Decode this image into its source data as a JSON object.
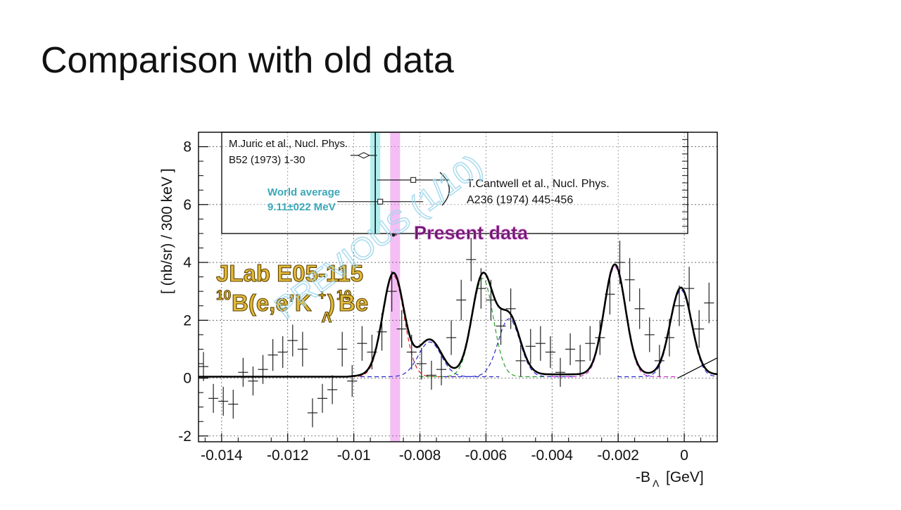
{
  "slide": {
    "title": "Comparison with old data"
  },
  "chart_data": {
    "type": "scatter",
    "title": "",
    "xlabel": "-B",
    "xlabel_sub": "Λ",
    "xlabel_unit": "[GeV]",
    "ylabel": "[ (nb/sr) / 300 keV ]",
    "xlim": [
      -0.0147,
      0.001
    ],
    "ylim": [
      -2.2,
      8.5
    ],
    "grid": true,
    "x_ticks": [
      -0.014,
      -0.012,
      -0.01,
      -0.008,
      -0.006,
      -0.004,
      -0.002,
      0
    ],
    "x_tick_labels": [
      "-0.014",
      "-0.012",
      "-0.01",
      "-0.008",
      "-0.006",
      "-0.004",
      "-0.002",
      "0"
    ],
    "y_ticks": [
      -2,
      0,
      2,
      4,
      6,
      8
    ],
    "y_tick_labels": [
      "-2",
      "0",
      "2",
      "4",
      "6",
      "8"
    ],
    "experiment_label": "JLab E05-115",
    "reaction_label": {
      "mass_a": "10",
      "target_text": "B(e,e’K",
      "charge": "+",
      "close": ")",
      "mass_b": "10",
      "hyper_sub": "Λ",
      "product": "Be"
    },
    "watermark": "PREVIOUS (1/10)",
    "inset": {
      "label_juric": [
        "M.Juric et al., Nucl. Phys.",
        "B52 (1973) 1-30"
      ],
      "label_cantwell": [
        "T.Cantwell et al., Nucl. Phys.",
        "A236 (1974) 445-456"
      ],
      "label_world": [
        "World average",
        "9.11±022 MeV"
      ],
      "label_present": "Present data",
      "points": [
        {
          "x": -0.0097,
          "y": 7.7,
          "xerr": 0.0004,
          "marker": "diamond"
        },
        {
          "x": -0.0082,
          "y": 6.85,
          "xerr": 0.0011,
          "marker": "square"
        },
        {
          "x": -0.0092,
          "y": 6.1,
          "xerr": 0.0013,
          "marker": "square"
        },
        {
          "x": -0.0088,
          "y": 4.95,
          "xerr": 0.0001,
          "marker": "dot"
        }
      ],
      "world_band": [
        -0.0095,
        -0.0092
      ],
      "present_band": [
        -0.0089,
        -0.0086
      ]
    },
    "series": [
      {
        "name": "",
        "style": "points",
        "x": [
          -0.01455,
          -0.01425,
          -0.01395,
          -0.01365,
          -0.01335,
          -0.01305,
          -0.01275,
          -0.01245,
          -0.01215,
          -0.01185,
          -0.01155,
          -0.01125,
          -0.01095,
          -0.01065,
          -0.01035,
          -0.01005,
          -0.00975,
          -0.00945,
          -0.00915,
          -0.00885,
          -0.00855,
          -0.00825,
          -0.00795,
          -0.00765,
          -0.00735,
          -0.00705,
          -0.00675,
          -0.00645,
          -0.00615,
          -0.00585,
          -0.00555,
          -0.00525,
          -0.00495,
          -0.00465,
          -0.00435,
          -0.00405,
          -0.00375,
          -0.00345,
          -0.00315,
          -0.00285,
          -0.00255,
          -0.00225,
          -0.00195,
          -0.00165,
          -0.00135,
          -0.00105,
          -0.00075,
          -0.00045,
          -0.00015,
          0.00015,
          0.00045,
          0.00075
        ],
        "y": [
          0.4,
          -0.7,
          -0.8,
          -0.9,
          0.2,
          -0.1,
          0.3,
          0.8,
          0.9,
          1.3,
          1.0,
          -1.2,
          -0.7,
          -0.4,
          1.0,
          -0.1,
          1.2,
          0.9,
          1.6,
          3.0,
          1.7,
          0.9,
          0.5,
          0.1,
          0.3,
          1.4,
          2.7,
          4.1,
          3.1,
          2.7,
          1.8,
          2.4,
          0.6,
          1.1,
          1.2,
          0.9,
          0.2,
          1.0,
          0.6,
          1.2,
          1.4,
          2.9,
          4.0,
          3.4,
          2.4,
          1.5,
          0.6,
          1.4,
          2.5,
          3.1,
          1.7,
          2.6
        ],
        "yerr": [
          0.5,
          0.5,
          0.5,
          0.5,
          0.5,
          0.5,
          0.5,
          0.55,
          0.55,
          0.55,
          0.6,
          0.5,
          0.5,
          0.5,
          0.6,
          0.55,
          0.6,
          0.6,
          0.65,
          0.7,
          0.65,
          0.6,
          0.55,
          0.5,
          0.55,
          0.6,
          0.7,
          0.75,
          0.7,
          0.7,
          0.65,
          0.7,
          0.55,
          0.6,
          0.6,
          0.55,
          0.5,
          0.55,
          0.55,
          0.6,
          0.6,
          0.7,
          0.75,
          0.75,
          0.7,
          0.6,
          0.55,
          0.65,
          0.7,
          0.75,
          0.65,
          0.7
        ]
      },
      {
        "name": "",
        "style": "fit-total",
        "color": "#000000"
      },
      {
        "name": "",
        "style": "component",
        "color": "#d62020",
        "peak_x": -0.0088,
        "peak_y": 3.5,
        "width": 0.00032
      },
      {
        "name": "",
        "style": "component",
        "color": "#2a2ad0",
        "peak_x": -0.0077,
        "peak_y": 1.2,
        "width": 0.00035
      },
      {
        "name": "",
        "style": "component",
        "color": "#2aa02a",
        "peak_x": -0.0061,
        "peak_y": 3.4,
        "width": 0.00032
      },
      {
        "name": "",
        "style": "component",
        "color": "#2a2ad0",
        "peak_x": -0.0053,
        "peak_y": 2.0,
        "width": 0.00033
      },
      {
        "name": "",
        "style": "component",
        "color": "#cc30cc",
        "peak_x": -0.0021,
        "peak_y": 3.8,
        "width": 0.00032
      },
      {
        "name": "",
        "style": "component",
        "color": "#2a2ad0",
        "peak_x": -0.0001,
        "peak_y": 3.0,
        "width": 0.00032
      }
    ]
  }
}
